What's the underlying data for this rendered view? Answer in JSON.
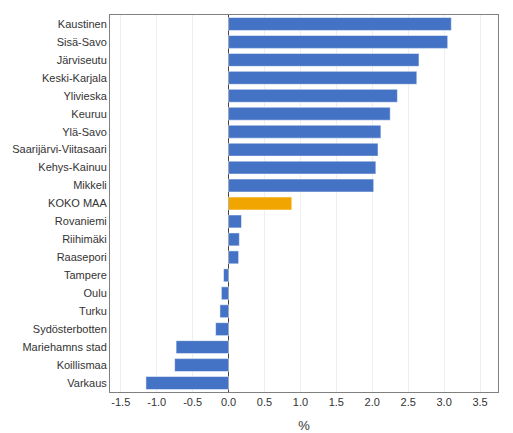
{
  "chart_data": {
    "type": "bar",
    "orientation": "horizontal",
    "categories": [
      "Varkaus",
      "Koillismaa",
      "Mariehamns stad",
      "Sydösterbotten",
      "Turku",
      "Oulu",
      "Tampere",
      "Raasepori",
      "Riihimäki",
      "Rovaniemi",
      "KOKO MAA",
      "Mikkeli",
      "Kehys-Kainuu",
      "Saarijärvi-Viitasaari",
      "Ylä-Savo",
      "Keuruu",
      "Ylivieska",
      "Keski-Karjala",
      "Järviseutu",
      "Sisä-Savo",
      "Kaustinen"
    ],
    "values": [
      -1.15,
      -0.75,
      -0.73,
      -0.18,
      -0.12,
      -0.1,
      -0.07,
      0.14,
      0.15,
      0.18,
      0.88,
      2.02,
      2.05,
      2.08,
      2.12,
      2.25,
      2.35,
      2.62,
      2.65,
      3.05,
      3.1
    ],
    "colors": [
      "#4472c4",
      "#4472c4",
      "#4472c4",
      "#4472c4",
      "#4472c4",
      "#4472c4",
      "#4472c4",
      "#4472c4",
      "#4472c4",
      "#4472c4",
      "#f0a500",
      "#4472c4",
      "#4472c4",
      "#4472c4",
      "#4472c4",
      "#4472c4",
      "#4472c4",
      "#4472c4",
      "#4472c4",
      "#4472c4",
      "#4472c4"
    ],
    "xlabel": "%",
    "xlim": [
      -1.65,
      3.75
    ],
    "xticks": [
      -1.5,
      {
        "value": -1.0,
        "label": "-1.0"
      },
      -0.5,
      {
        "value": 0.0,
        "label": "0.0"
      },
      0.5,
      {
        "value": 1.0,
        "label": "1.0"
      },
      1.5,
      {
        "value": 2.0,
        "label": "2.0"
      },
      2.5,
      {
        "value": 3.0,
        "label": "3.0"
      },
      3.5
    ],
    "grid": true
  }
}
